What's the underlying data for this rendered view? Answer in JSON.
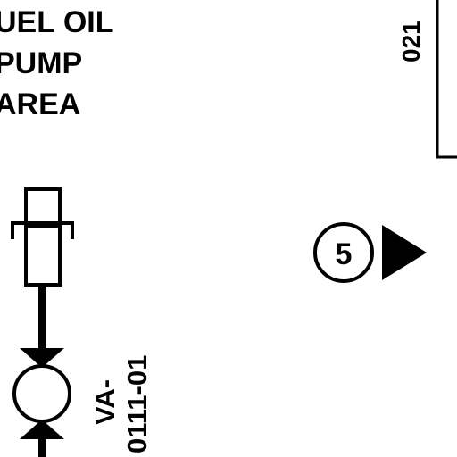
{
  "area_label": {
    "line1": "UEL OIL",
    "line2": "PUMP",
    "line3": "AREA"
  },
  "line_tag": "021",
  "callout": {
    "number": "5"
  },
  "valve_tag": {
    "line1": "VA-",
    "line2": "0111-01"
  },
  "colors": {
    "ink": "#000000",
    "paper": "#ffffff"
  }
}
